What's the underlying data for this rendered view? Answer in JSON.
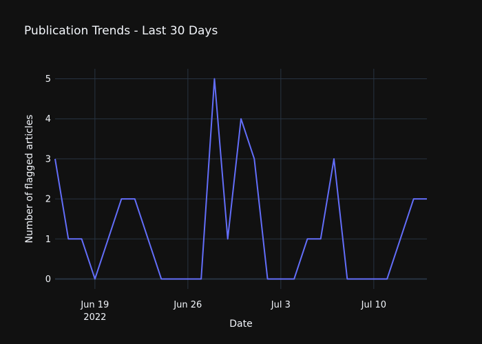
{
  "chart_data": {
    "type": "line",
    "title": "Publication Trends - Last 30 Days",
    "xlabel": "Date",
    "ylabel": "Number of flagged articles",
    "x_start": "2022-06-16",
    "x_end": "2022-07-14",
    "xlim": [
      "2022-06-16",
      "2022-07-14"
    ],
    "ylim": [
      -0.25,
      5.25
    ],
    "x": [
      "2022-06-16",
      "2022-06-17",
      "2022-06-18",
      "2022-06-19",
      "2022-06-20",
      "2022-06-21",
      "2022-06-22",
      "2022-06-23",
      "2022-06-24",
      "2022-06-25",
      "2022-06-26",
      "2022-06-27",
      "2022-06-28",
      "2022-06-29",
      "2022-06-30",
      "2022-07-01",
      "2022-07-02",
      "2022-07-03",
      "2022-07-04",
      "2022-07-05",
      "2022-07-06",
      "2022-07-07",
      "2022-07-08",
      "2022-07-09",
      "2022-07-10",
      "2022-07-11",
      "2022-07-12",
      "2022-07-13",
      "2022-07-14"
    ],
    "series": [
      {
        "values": [
          3,
          1,
          1,
          0,
          1,
          2,
          2,
          1,
          0,
          0,
          0,
          0,
          5,
          1,
          4,
          3,
          0,
          0,
          0,
          1,
          1,
          3,
          0,
          0,
          0,
          0,
          1,
          2,
          2
        ],
        "color": "#636efa"
      }
    ],
    "x_ticks": [
      {
        "date": "2022-06-19",
        "label": "Jun 19",
        "sublabel": "2022"
      },
      {
        "date": "2022-06-26",
        "label": "Jun 26",
        "sublabel": ""
      },
      {
        "date": "2022-07-03",
        "label": "Jul 3",
        "sublabel": ""
      },
      {
        "date": "2022-07-10",
        "label": "Jul 10",
        "sublabel": ""
      }
    ],
    "y_ticks": [
      0,
      1,
      2,
      3,
      4,
      5
    ],
    "grid": true,
    "legend": "none",
    "colors": {
      "background": "#111111",
      "grid": "#283442",
      "text": "#f2f5fa",
      "line": "#636efa"
    }
  }
}
